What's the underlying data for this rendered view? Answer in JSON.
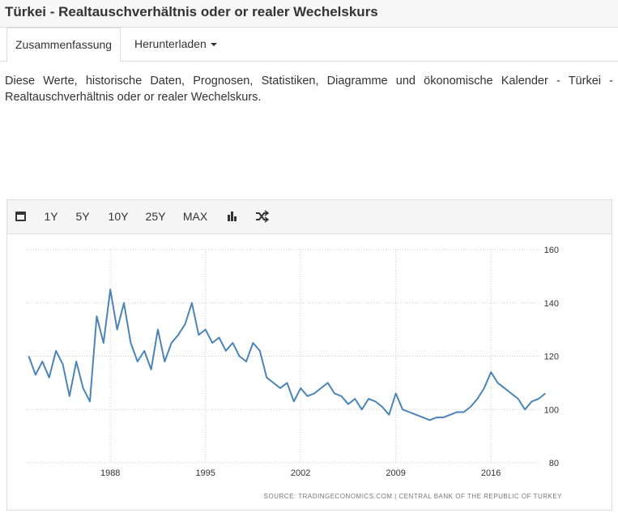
{
  "header": {
    "title": "Türkei - Realtauschverhältnis oder or realer Wechelskurs"
  },
  "tabs": [
    "Zusammenfassung",
    "Herunterladen"
  ],
  "description": "Diese Werte, historische Daten, Prognosen, Statistiken, Diagramme und ökonomische Kalender - Türkei - Realtauschverhältnis oder or realer Wechelskurs.",
  "toolbar": [
    "1Y",
    "5Y",
    "10Y",
    "25Y",
    "MAX"
  ],
  "chart_data": {
    "type": "line",
    "color": "#4a84b8",
    "source": "SOURCE: TRADINGECONOMICS.COM  |  CENTRAL BANK OF THE REPUBLIC OF TURKEY",
    "x": [
      1982,
      1982.5,
      1983,
      1983.5,
      1984,
      1984.5,
      1985,
      1985.5,
      1986,
      1986.5,
      1987,
      1987.5,
      1988,
      1988.5,
      1989,
      1989.5,
      1990,
      1990.5,
      1991,
      1991.5,
      1992,
      1992.5,
      1993,
      1993.5,
      1994,
      1994.5,
      1995,
      1995.5,
      1996,
      1996.5,
      1997,
      1997.5,
      1998,
      1998.5,
      1999,
      1999.5,
      2000,
      2000.5,
      2001,
      2001.5,
      2002,
      2002.5,
      2003,
      2003.5,
      2004,
      2004.5,
      2005,
      2005.5,
      2006,
      2006.5,
      2007,
      2007.5,
      2008,
      2008.5,
      2009,
      2009.5,
      2010,
      2010.5,
      2011,
      2011.5,
      2012,
      2012.5,
      2013,
      2013.5,
      2014,
      2014.5,
      2015,
      2015.5,
      2016,
      2016.5,
      2017,
      2017.5,
      2018,
      2018.5,
      2019,
      2019.5,
      2020
    ],
    "values": [
      120,
      113,
      118,
      112,
      122,
      117,
      105,
      118,
      108,
      103,
      135,
      125,
      145,
      130,
      140,
      125,
      118,
      122,
      115,
      130,
      118,
      125,
      128,
      132,
      140,
      128,
      130,
      125,
      127,
      122,
      125,
      120,
      118,
      125,
      122,
      112,
      110,
      108,
      110,
      103,
      108,
      105,
      106,
      108,
      110,
      106,
      105,
      102,
      104,
      100,
      104,
      103,
      101,
      98,
      106,
      100,
      99,
      98,
      97,
      96,
      97,
      97,
      98,
      99,
      99,
      101,
      104,
      108,
      114,
      110,
      108,
      106,
      104,
      100,
      103,
      104,
      106
    ],
    "xlim": [
      1980.6,
      2020.4
    ],
    "xticks": [
      1988,
      1995,
      2002,
      2009,
      2016
    ],
    "ylim": [
      80,
      160
    ],
    "yticks": [
      80,
      100,
      120,
      140,
      160
    ],
    "grid": true
  }
}
